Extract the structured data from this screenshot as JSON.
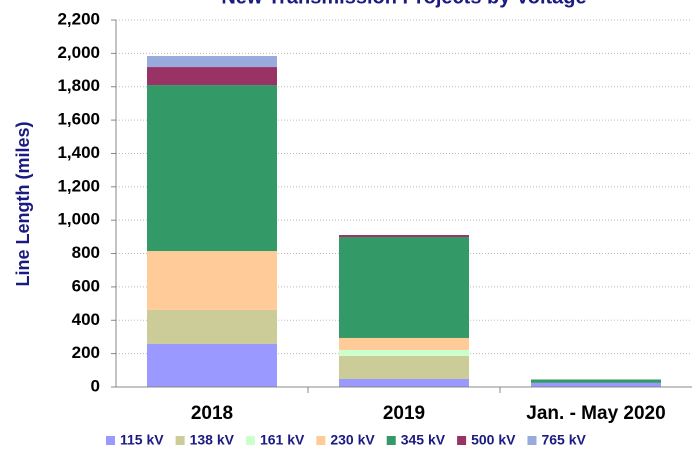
{
  "chart_data": {
    "type": "stacked_bar",
    "title": "New Transmission Projects by Voltage",
    "y_label": "Line Length (miles)",
    "categories": [
      "2018",
      "2019",
      "Jan. - May 2020"
    ],
    "series": [
      {
        "name": "115 kV",
        "color": "#9999ff",
        "values": [
          258,
          48,
          25
        ]
      },
      {
        "name": "138 kV",
        "color": "#cccc99",
        "values": [
          204,
          138,
          0
        ]
      },
      {
        "name": "161 kV",
        "color": "#ccffcc",
        "values": [
          0,
          36,
          0
        ]
      },
      {
        "name": "230 kV",
        "color": "#ffcc99",
        "values": [
          353,
          72,
          0
        ]
      },
      {
        "name": "345 kV",
        "color": "#339966",
        "values": [
          995,
          605,
          20
        ]
      },
      {
        "name": "500 kV",
        "color": "#993366",
        "values": [
          108,
          12,
          0
        ]
      },
      {
        "name": "765 kV",
        "color": "#99aadd",
        "values": [
          66,
          0,
          0
        ]
      }
    ],
    "ylim": [
      0,
      2200
    ],
    "yticks": [
      0,
      200,
      400,
      600,
      800,
      {
        "value": 1000,
        "label": "1,000"
      },
      {
        "value": 1200,
        "label": "1,200"
      },
      {
        "value": 1400,
        "label": "1,400"
      },
      {
        "value": 1600,
        "label": "1,600"
      },
      {
        "value": 1800,
        "label": "1,800"
      },
      {
        "value": 2000,
        "label": "2,000"
      },
      {
        "value": 2200,
        "label": "2,200"
      }
    ],
    "grid": true,
    "legend": "bottom"
  }
}
